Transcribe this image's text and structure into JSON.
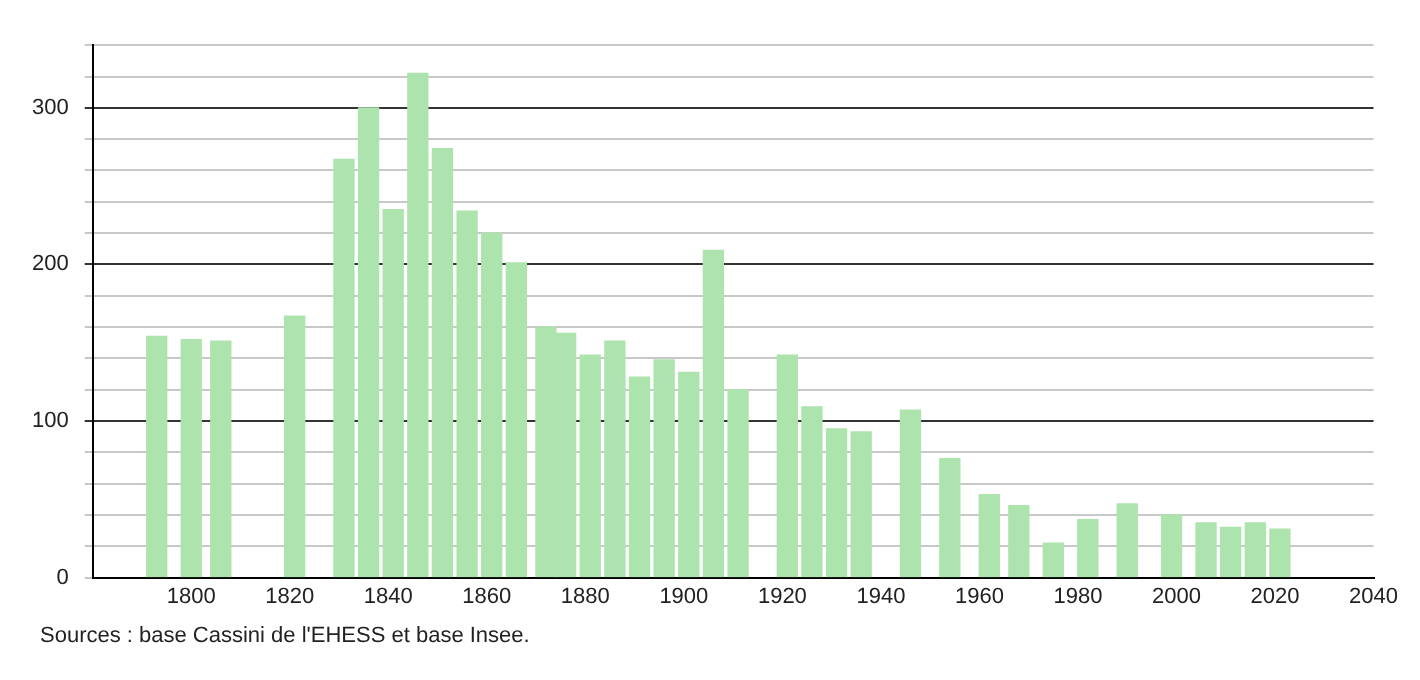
{
  "chart_data": {
    "type": "bar",
    "x": [
      1793,
      1800,
      1806,
      1821,
      1831,
      1836,
      1841,
      1846,
      1851,
      1856,
      1861,
      1866,
      1872,
      1876,
      1881,
      1886,
      1891,
      1896,
      1901,
      1906,
      1911,
      1921,
      1926,
      1931,
      1936,
      1946,
      1954,
      1962,
      1968,
      1975,
      1982,
      1990,
      1999,
      2006,
      2011,
      2016,
      2021
    ],
    "values": [
      154,
      152,
      151,
      167,
      267,
      300,
      235,
      322,
      274,
      234,
      220,
      201,
      160,
      156,
      142,
      151,
      128,
      139,
      131,
      209,
      120,
      142,
      109,
      95,
      93,
      107,
      76,
      53,
      46,
      22,
      37,
      47,
      40,
      35,
      32,
      35,
      31
    ],
    "color": "#ade3ad",
    "xlim": [
      1780,
      2040
    ],
    "xticks": [
      1800,
      1820,
      1840,
      1860,
      1880,
      1900,
      1920,
      1940,
      1960,
      1980,
      2000,
      2020,
      2040
    ],
    "ylim": [
      0,
      340
    ],
    "yticks": [
      0,
      {
        "value": 20,
        "label": null
      },
      {
        "value": 40,
        "label": null
      },
      {
        "value": 60,
        "label": null
      },
      {
        "value": 80,
        "label": null
      },
      100,
      {
        "value": 120,
        "label": null
      },
      {
        "value": 140,
        "label": null
      },
      {
        "value": 160,
        "label": null
      },
      {
        "value": 180,
        "label": null
      },
      200,
      {
        "value": 220,
        "label": null
      },
      {
        "value": 240,
        "label": null
      },
      {
        "value": 260,
        "label": null
      },
      {
        "value": 280,
        "label": null
      },
      300,
      {
        "value": 320,
        "label": null
      },
      {
        "value": 340,
        "label": null
      }
    ],
    "grid": "y",
    "annotations": [
      "Sources : base Cassini de l'EHESS et base Insee."
    ]
  }
}
